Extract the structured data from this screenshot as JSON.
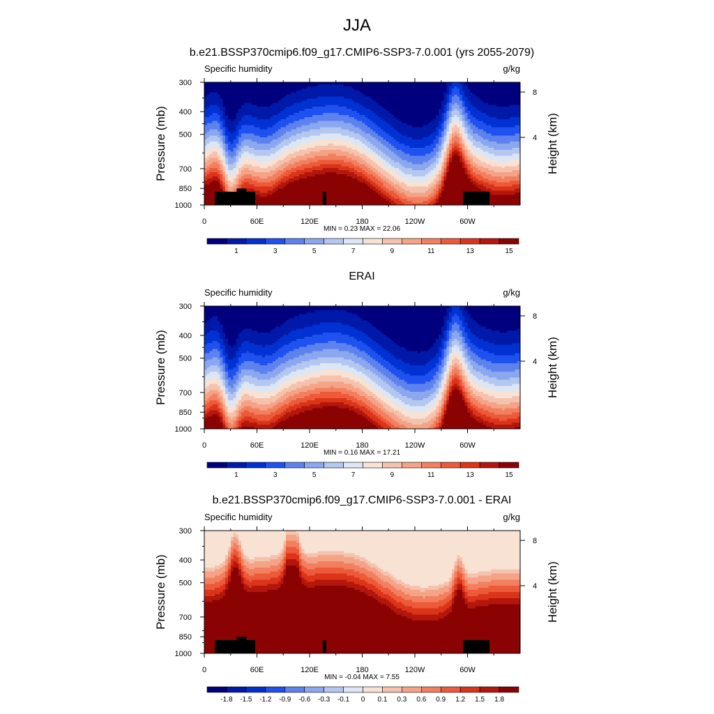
{
  "title": "JJA",
  "chart_data": [
    {
      "type": "heatmap",
      "title": "b.e21.BSSP370cmip6.f09_g17.CMIP6-SSP3-7.0.001 (yrs 2055-2079)",
      "left_label": "Specific humidity",
      "right_label": "g/kg",
      "ylabel": "Pressure (mb)",
      "y2label": "Height (km)",
      "x_ticks": [
        "0",
        "60E",
        "120E",
        "180",
        "120W",
        "60W"
      ],
      "y_ticks": [
        "300",
        "400",
        "500",
        "700",
        "850",
        "1000"
      ],
      "y2_ticks": [
        "8",
        "4"
      ],
      "y_scale": "log",
      "stats": "MIN =   0.23  MAX =  22.06",
      "min": 0.23,
      "max": 22.06,
      "colorbar_labels": [
        "1",
        "3",
        "5",
        "7",
        "9",
        "11",
        "13",
        "15"
      ],
      "colors": [
        "#00007f",
        "#0019a8",
        "#0031d2",
        "#1e51ee",
        "#5d82ee",
        "#8aa7ef",
        "#b4c7f1",
        "#dde6f5",
        "#f8e2d4",
        "#f5c2ae",
        "#f4a387",
        "#f28060",
        "#ec5a3a",
        "#db3419",
        "#b2160c",
        "#8a0202"
      ],
      "variant": "model"
    },
    {
      "type": "heatmap",
      "title": "ERAI",
      "left_label": "Specific humidity",
      "right_label": "g/kg",
      "ylabel": "Pressure (mb)",
      "y2label": "Height (km)",
      "x_ticks": [
        "0",
        "60E",
        "120E",
        "180",
        "120W",
        "60W"
      ],
      "y_ticks": [
        "300",
        "400",
        "500",
        "700",
        "850",
        "1000"
      ],
      "y2_ticks": [
        "8",
        "4"
      ],
      "y_scale": "log",
      "stats": "MIN =   0.16  MAX =  17.21",
      "min": 0.16,
      "max": 17.21,
      "colorbar_labels": [
        "1",
        "3",
        "5",
        "7",
        "9",
        "11",
        "13",
        "15"
      ],
      "colors": [
        "#00007f",
        "#0019a8",
        "#0031d2",
        "#1e51ee",
        "#5d82ee",
        "#8aa7ef",
        "#b4c7f1",
        "#dde6f5",
        "#f8e2d4",
        "#f5c2ae",
        "#f4a387",
        "#f28060",
        "#ec5a3a",
        "#db3419",
        "#b2160c",
        "#8a0202"
      ],
      "variant": "obs"
    },
    {
      "type": "heatmap",
      "title": "b.e21.BSSP370cmip6.f09_g17.CMIP6-SSP3-7.0.001 - ERAI",
      "left_label": "Specific humidity",
      "right_label": "g/kg",
      "ylabel": "Pressure (mb)",
      "y2label": "Height (km)",
      "x_ticks": [
        "0",
        "60E",
        "120E",
        "180",
        "120W",
        "60W"
      ],
      "y_ticks": [
        "300",
        "400",
        "500",
        "700",
        "850",
        "1000"
      ],
      "y2_ticks": [
        "8",
        "4"
      ],
      "y_scale": "log",
      "stats": "MIN =  -0.04  MAX =   7.55",
      "min": -0.04,
      "max": 7.55,
      "colorbar_labels": [
        "-1.8",
        "-1.5",
        "-1.2",
        "-0.9",
        "-0.6",
        "-0.3",
        "-0.1",
        "0",
        "0.1",
        "0.3",
        "0.6",
        "0.9",
        "1.2",
        "1.5",
        "1.8"
      ],
      "colors": [
        "#00007f",
        "#0019a8",
        "#0031d2",
        "#1e51ee",
        "#5d82ee",
        "#8aa7ef",
        "#b4c7f1",
        "#dde6f5",
        "#f8e2d4",
        "#f5c2ae",
        "#f4a387",
        "#f28060",
        "#ec5a3a",
        "#db3419",
        "#b2160c",
        "#8a0202"
      ],
      "variant": "diff"
    }
  ]
}
